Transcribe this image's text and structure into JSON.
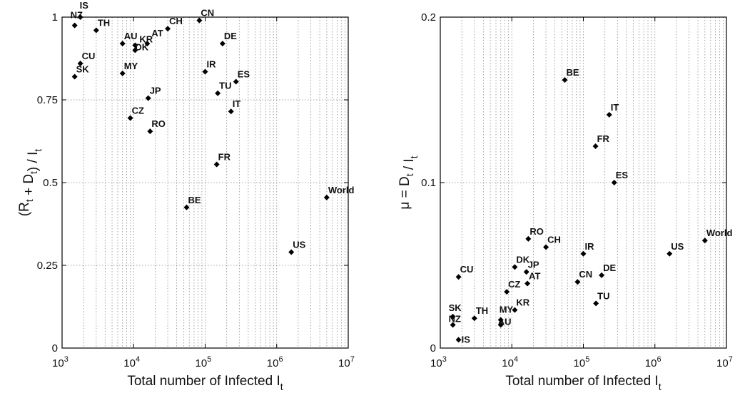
{
  "chart_data": [
    {
      "type": "scatter",
      "x_scale": "log",
      "xlim": [
        1000,
        10000000
      ],
      "ylim": [
        0,
        1
      ],
      "grid": "dotted",
      "xlabel": "Total number of Infected I",
      "xlabel_sub": "t",
      "ylabel": "(R + D) / I",
      "xticks": [
        1000,
        10000,
        100000,
        1000000,
        10000000
      ],
      "xtick_labels": [
        "10^3",
        "10^4",
        "10^5",
        "10^6",
        "10^7"
      ],
      "yticks": [
        0,
        0.25,
        0.5,
        0.75,
        1
      ],
      "ytick_labels": [
        "0",
        "0.25",
        "0.5",
        "0.75",
        "1"
      ],
      "points": [
        {
          "label": "IS",
          "x": 1800,
          "y": 1.0
        },
        {
          "label": "NZ",
          "x": 1500,
          "y": 0.975
        },
        {
          "label": "TH",
          "x": 3000,
          "y": 0.96
        },
        {
          "label": "CU",
          "x": 1800,
          "y": 0.86
        },
        {
          "label": "SK",
          "x": 1500,
          "y": 0.82
        },
        {
          "label": "AU",
          "x": 7000,
          "y": 0.92
        },
        {
          "label": "KR",
          "x": 10500,
          "y": 0.915
        },
        {
          "label": "DK",
          "x": 10500,
          "y": 0.9
        },
        {
          "label": "AT",
          "x": 15500,
          "y": 0.92
        },
        {
          "label": "CH",
          "x": 30000,
          "y": 0.965
        },
        {
          "label": "CN",
          "x": 83000,
          "y": 0.99
        },
        {
          "label": "DE",
          "x": 175000,
          "y": 0.92
        },
        {
          "label": "MY",
          "x": 7000,
          "y": 0.83
        },
        {
          "label": "IR",
          "x": 100000,
          "y": 0.835
        },
        {
          "label": "ES",
          "x": 270000,
          "y": 0.805
        },
        {
          "label": "TU",
          "x": 150000,
          "y": 0.77
        },
        {
          "label": "JP",
          "x": 16000,
          "y": 0.755
        },
        {
          "label": "IT",
          "x": 230000,
          "y": 0.715
        },
        {
          "label": "CZ",
          "x": 9000,
          "y": 0.695
        },
        {
          "label": "RO",
          "x": 17000,
          "y": 0.655
        },
        {
          "label": "FR",
          "x": 145000,
          "y": 0.555
        },
        {
          "label": "World",
          "x": 5000000,
          "y": 0.455
        },
        {
          "label": "BE",
          "x": 55000,
          "y": 0.425
        },
        {
          "label": "US",
          "x": 1600000,
          "y": 0.29
        }
      ]
    },
    {
      "type": "scatter",
      "x_scale": "log",
      "xlim": [
        1000,
        10000000
      ],
      "ylim": [
        0,
        0.2
      ],
      "grid": "dotted",
      "xlabel": "Total number of Infected I",
      "xlabel_sub": "t",
      "ylabel": "μ = D / I",
      "xticks": [
        1000,
        10000,
        100000,
        1000000,
        10000000
      ],
      "xtick_labels": [
        "10^3",
        "10^4",
        "10^5",
        "10^6",
        "10^7"
      ],
      "yticks": [
        0,
        0.1,
        0.2
      ],
      "ytick_labels": [
        "0",
        "0.1",
        "0.2"
      ],
      "points": [
        {
          "label": "BE",
          "x": 55000,
          "y": 0.162
        },
        {
          "label": "IT",
          "x": 230000,
          "y": 0.141
        },
        {
          "label": "FR",
          "x": 148000,
          "y": 0.122
        },
        {
          "label": "ES",
          "x": 270000,
          "y": 0.1
        },
        {
          "label": "RO",
          "x": 17000,
          "y": 0.066
        },
        {
          "label": "CH",
          "x": 30000,
          "y": 0.061
        },
        {
          "label": "IR",
          "x": 100000,
          "y": 0.057
        },
        {
          "label": "US",
          "x": 1600000,
          "y": 0.057
        },
        {
          "label": "World",
          "x": 5000000,
          "y": 0.065
        },
        {
          "label": "DK",
          "x": 11000,
          "y": 0.049
        },
        {
          "label": "JP",
          "x": 16000,
          "y": 0.046
        },
        {
          "label": "CU",
          "x": 1800,
          "y": 0.043
        },
        {
          "label": "AT",
          "x": 16500,
          "y": 0.039
        },
        {
          "label": "DE",
          "x": 180000,
          "y": 0.044
        },
        {
          "label": "CN",
          "x": 83000,
          "y": 0.04
        },
        {
          "label": "CZ",
          "x": 8500,
          "y": 0.034
        },
        {
          "label": "TU",
          "x": 150000,
          "y": 0.027
        },
        {
          "label": "KR",
          "x": 11000,
          "y": 0.023
        },
        {
          "label": "SK",
          "x": 1500,
          "y": 0.019
        },
        {
          "label": "TH",
          "x": 3000,
          "y": 0.018
        },
        {
          "label": "NZ",
          "x": 1500,
          "y": 0.014
        },
        {
          "label": "AU",
          "x": 7000,
          "y": 0.014
        },
        {
          "label": "MY",
          "x": 7000,
          "y": 0.017
        },
        {
          "label": "IS",
          "x": 1800,
          "y": 0.005
        }
      ]
    }
  ]
}
